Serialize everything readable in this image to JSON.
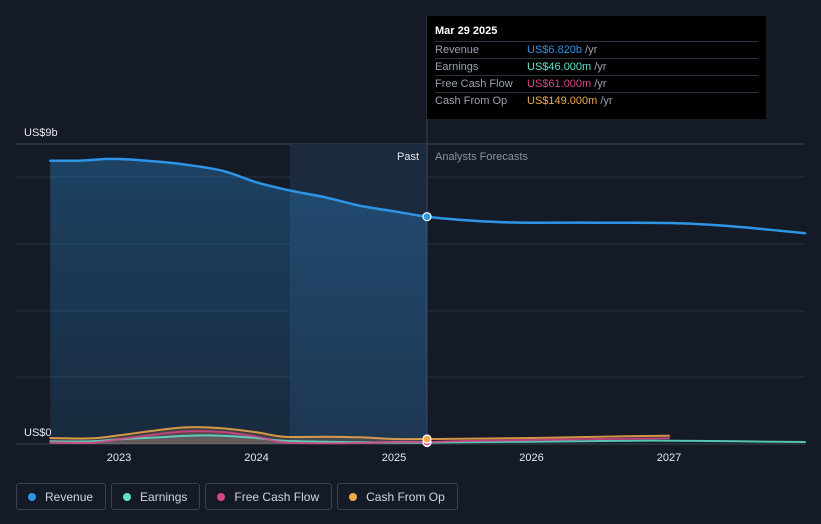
{
  "colors": {
    "revenue": "#2e95e6",
    "earnings": "#5fe3cf",
    "free_cash_flow": "#d6478a",
    "cash_from_op": "#f3a94a"
  },
  "chart_data": {
    "type": "line",
    "y_label_top": "US$9b",
    "y_label_bottom": "US$0",
    "ylim": [
      0,
      9
    ],
    "x_ticks": [
      {
        "label": "2023",
        "x": 2023.0
      },
      {
        "label": "2024",
        "x": 2024.0
      },
      {
        "label": "2025",
        "x": 2025.0
      },
      {
        "label": "2026",
        "x": 2026.0
      },
      {
        "label": "2027",
        "x": 2027.0
      }
    ],
    "past_label": "Past",
    "forecast_label": "Analysts Forecasts",
    "divider_x": 2025.24,
    "series": [
      {
        "name": "Revenue",
        "key": "revenue",
        "points": [
          [
            2022.5,
            8.5
          ],
          [
            2022.7,
            8.5
          ],
          [
            2022.9,
            8.55
          ],
          [
            2023.0,
            8.55
          ],
          [
            2023.2,
            8.5
          ],
          [
            2023.45,
            8.4
          ],
          [
            2023.75,
            8.2
          ],
          [
            2024.0,
            7.85
          ],
          [
            2024.25,
            7.6
          ],
          [
            2024.5,
            7.4
          ],
          [
            2024.75,
            7.15
          ],
          [
            2025.0,
            6.98
          ],
          [
            2025.24,
            6.82
          ],
          [
            2025.5,
            6.72
          ],
          [
            2025.75,
            6.66
          ],
          [
            2026.0,
            6.64
          ],
          [
            2026.5,
            6.64
          ],
          [
            2027.0,
            6.63
          ],
          [
            2027.3,
            6.58
          ],
          [
            2027.6,
            6.48
          ],
          [
            2027.99,
            6.32
          ]
        ]
      },
      {
        "name": "Earnings",
        "key": "earnings",
        "points": [
          [
            2022.5,
            0.08
          ],
          [
            2022.8,
            0.08
          ],
          [
            2023.0,
            0.14
          ],
          [
            2023.3,
            0.2
          ],
          [
            2023.5,
            0.25
          ],
          [
            2023.75,
            0.25
          ],
          [
            2024.0,
            0.18
          ],
          [
            2024.2,
            0.1
          ],
          [
            2024.5,
            0.07
          ],
          [
            2024.75,
            0.05
          ],
          [
            2025.0,
            0.046
          ],
          [
            2025.24,
            0.046
          ],
          [
            2025.5,
            0.05
          ],
          [
            2026.0,
            0.07
          ],
          [
            2026.5,
            0.09
          ],
          [
            2027.0,
            0.1
          ],
          [
            2027.5,
            0.08
          ],
          [
            2027.99,
            0.06
          ]
        ]
      },
      {
        "name": "Free Cash Flow",
        "key": "free_cash_flow",
        "points": [
          [
            2022.5,
            0.05
          ],
          [
            2022.8,
            0.04
          ],
          [
            2023.0,
            0.14
          ],
          [
            2023.25,
            0.28
          ],
          [
            2023.5,
            0.38
          ],
          [
            2023.75,
            0.36
          ],
          [
            2024.0,
            0.22
          ],
          [
            2024.2,
            0.05
          ],
          [
            2024.5,
            0.02
          ],
          [
            2024.75,
            0.03
          ],
          [
            2025.0,
            0.06
          ],
          [
            2025.24,
            0.061
          ],
          [
            2025.5,
            0.09
          ],
          [
            2026.0,
            0.12
          ],
          [
            2026.5,
            0.15
          ],
          [
            2027.0,
            0.17
          ]
        ]
      },
      {
        "name": "Cash From Op",
        "key": "cash_from_op",
        "points": [
          [
            2022.5,
            0.18
          ],
          [
            2022.8,
            0.17
          ],
          [
            2023.0,
            0.26
          ],
          [
            2023.25,
            0.4
          ],
          [
            2023.5,
            0.5
          ],
          [
            2023.75,
            0.47
          ],
          [
            2024.0,
            0.35
          ],
          [
            2024.2,
            0.22
          ],
          [
            2024.5,
            0.22
          ],
          [
            2024.75,
            0.2
          ],
          [
            2025.0,
            0.15
          ],
          [
            2025.24,
            0.149
          ],
          [
            2025.5,
            0.16
          ],
          [
            2026.0,
            0.18
          ],
          [
            2026.5,
            0.22
          ],
          [
            2027.0,
            0.25
          ]
        ]
      }
    ]
  },
  "tooltip": {
    "date": "Mar 29 2025",
    "rows": [
      {
        "label": "Revenue",
        "value": "US$6.820b",
        "unit": "/yr"
      },
      {
        "label": "Earnings",
        "value": "US$46.000m",
        "unit": "/yr"
      },
      {
        "label": "Free Cash Flow",
        "value": "US$61.000m",
        "unit": "/yr"
      },
      {
        "label": "Cash From Op",
        "value": "US$149.000m",
        "unit": "/yr"
      }
    ]
  },
  "legend": [
    {
      "label": "Revenue",
      "key": "revenue"
    },
    {
      "label": "Earnings",
      "key": "earnings"
    },
    {
      "label": "Free Cash Flow",
      "key": "free_cash_flow"
    },
    {
      "label": "Cash From Op",
      "key": "cash_from_op"
    }
  ]
}
